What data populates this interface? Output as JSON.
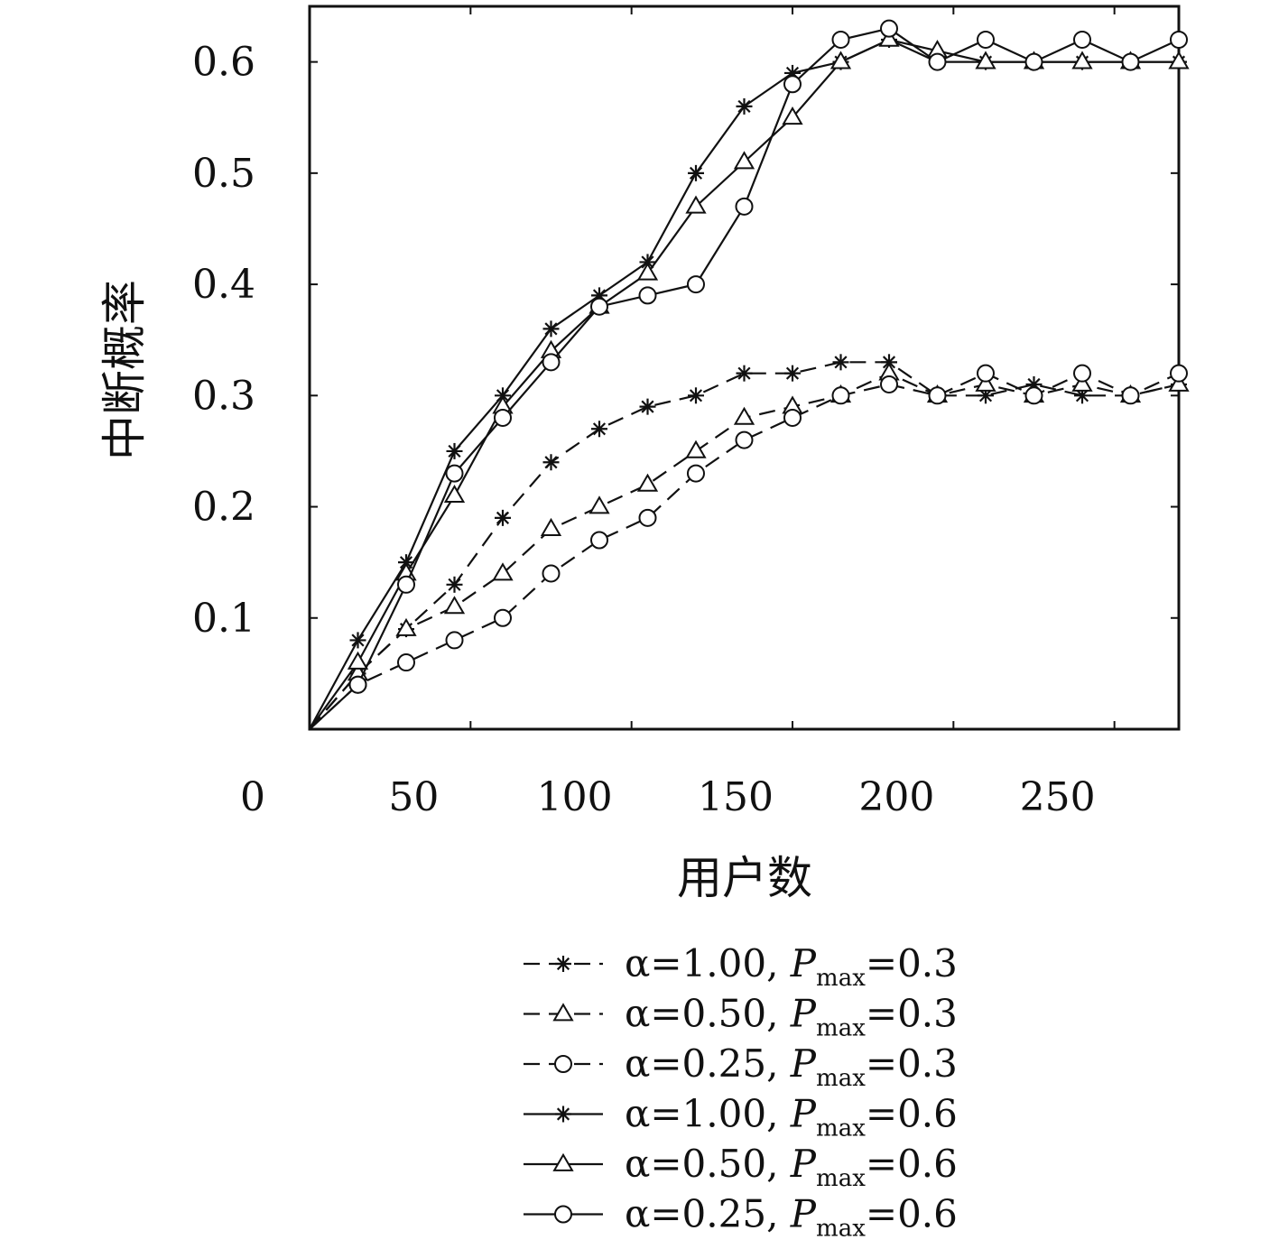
{
  "chart_data": {
    "type": "line",
    "xlabel": "用户数",
    "ylabel": "中断概率",
    "xlim": [
      0,
      270
    ],
    "ylim": [
      0,
      0.65
    ],
    "x_ticks": [
      "0",
      "50",
      "100",
      "150",
      "200",
      "250"
    ],
    "y_ticks": [
      "0.1",
      "0.2",
      "0.3",
      "0.4",
      "0.5",
      "0.6"
    ],
    "legend_position": "below plot",
    "grid": false,
    "x": [
      0,
      15,
      30,
      45,
      60,
      75,
      90,
      105,
      120,
      135,
      150,
      165,
      180,
      195,
      210,
      225,
      240,
      255,
      270
    ],
    "series": [
      {
        "name": "α=1.00, P_max=0.3",
        "legend_prefix": "α=1.00, ",
        "legend_p": "P",
        "legend_sub": "max",
        "legend_suffix": "=0.3",
        "marker": "star",
        "dash": true,
        "values": [
          0,
          0.05,
          0.09,
          0.13,
          0.19,
          0.24,
          0.27,
          0.29,
          0.3,
          0.32,
          0.32,
          0.33,
          0.33,
          0.3,
          0.3,
          0.31,
          0.3,
          0.3,
          0.31
        ]
      },
      {
        "name": "α=0.50, P_max=0.3",
        "legend_prefix": "α=0.50, ",
        "legend_p": "P",
        "legend_sub": "max",
        "legend_suffix": "=0.3",
        "marker": "triangle",
        "dash": true,
        "values": [
          0,
          0.05,
          0.09,
          0.11,
          0.14,
          0.18,
          0.2,
          0.22,
          0.25,
          0.28,
          0.29,
          0.3,
          0.32,
          0.3,
          0.31,
          0.3,
          0.31,
          0.3,
          0.31
        ]
      },
      {
        "name": "α=0.25, P_max=0.3",
        "legend_prefix": "α=0.25, ",
        "legend_p": "P",
        "legend_sub": "max",
        "legend_suffix": "=0.3",
        "marker": "circle",
        "dash": true,
        "values": [
          0,
          0.04,
          0.06,
          0.08,
          0.1,
          0.14,
          0.17,
          0.19,
          0.23,
          0.26,
          0.28,
          0.3,
          0.31,
          0.3,
          0.32,
          0.3,
          0.32,
          0.3,
          0.32
        ]
      },
      {
        "name": "α=1.00, P_max=0.6",
        "legend_prefix": "α=1.00, ",
        "legend_p": "P",
        "legend_sub": "max",
        "legend_suffix": "=0.6",
        "marker": "star",
        "dash": false,
        "values": [
          0,
          0.08,
          0.15,
          0.25,
          0.3,
          0.36,
          0.39,
          0.42,
          0.5,
          0.56,
          0.59,
          0.6,
          0.62,
          0.6,
          0.6,
          0.6,
          0.6,
          0.6,
          0.6
        ]
      },
      {
        "name": "α=0.50, P_max=0.6",
        "legend_prefix": "α=0.50, ",
        "legend_p": "P",
        "legend_sub": "max",
        "legend_suffix": "=0.6",
        "marker": "triangle",
        "dash": false,
        "values": [
          0,
          0.06,
          0.14,
          0.21,
          0.29,
          0.34,
          0.38,
          0.41,
          0.47,
          0.51,
          0.55,
          0.6,
          0.62,
          0.61,
          0.6,
          0.6,
          0.6,
          0.6,
          0.6
        ]
      },
      {
        "name": "α=0.25, P_max=0.6",
        "legend_prefix": "α=0.25, ",
        "legend_p": "P",
        "legend_sub": "max",
        "legend_suffix": "=0.6",
        "marker": "circle",
        "dash": false,
        "values": [
          0,
          0.04,
          0.13,
          0.23,
          0.28,
          0.33,
          0.38,
          0.39,
          0.4,
          0.47,
          0.58,
          0.62,
          0.63,
          0.6,
          0.62,
          0.6,
          0.62,
          0.6,
          0.62
        ]
      }
    ]
  }
}
